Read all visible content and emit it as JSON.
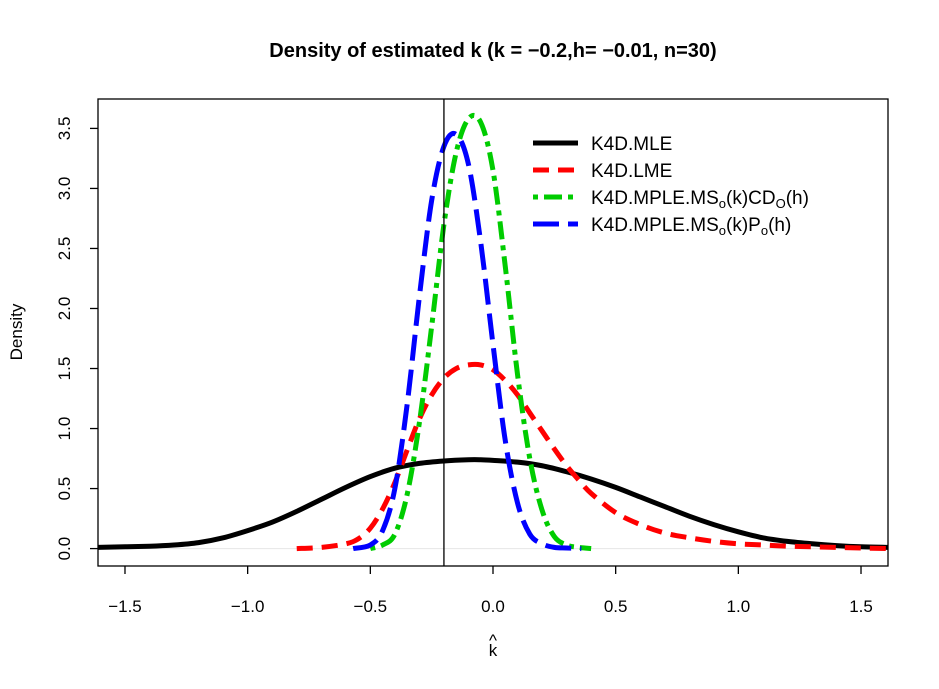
{
  "chart_data": {
    "type": "line",
    "title": "Density of estimated k (k = −0.2,h= −0.01, n=30)",
    "xlabel": "k",
    "xlabel_hat": "^",
    "ylabel": "Density",
    "xlim": [
      -1.61,
      1.61
    ],
    "ylim": [
      -0.145,
      3.745
    ],
    "x_ticks": [
      -1.5,
      -1.0,
      -0.5,
      0.0,
      0.5,
      1.0,
      1.5
    ],
    "x_tick_labels": [
      "−1.5",
      "−1.0",
      "−0.5",
      "0.0",
      "0.5",
      "1.0",
      "1.5"
    ],
    "y_ticks": [
      0.0,
      0.5,
      1.0,
      1.5,
      2.0,
      2.5,
      3.0,
      3.5
    ],
    "y_tick_labels": [
      "0.0",
      "0.5",
      "1.0",
      "1.5",
      "2.0",
      "2.5",
      "3.0",
      "3.5"
    ],
    "vline_x": -0.2,
    "legend_position": "top-right",
    "series": [
      {
        "name": "K4D.MLE",
        "legend_base": "K4D.MLE",
        "color": "#000000",
        "dash": "solid",
        "x": [
          -1.61,
          -1.4,
          -1.3,
          -1.2,
          -1.1,
          -1.0,
          -0.9,
          -0.8,
          -0.7,
          -0.6,
          -0.5,
          -0.4,
          -0.3,
          -0.2,
          -0.1,
          -0.05,
          0.0,
          0.1,
          0.2,
          0.3,
          0.4,
          0.5,
          0.6,
          0.7,
          0.8,
          0.9,
          1.0,
          1.1,
          1.2,
          1.3,
          1.4,
          1.5,
          1.61
        ],
        "y": [
          0.01,
          0.02,
          0.03,
          0.05,
          0.09,
          0.15,
          0.22,
          0.31,
          0.41,
          0.51,
          0.6,
          0.67,
          0.71,
          0.73,
          0.74,
          0.74,
          0.735,
          0.72,
          0.69,
          0.64,
          0.58,
          0.51,
          0.43,
          0.35,
          0.27,
          0.2,
          0.14,
          0.09,
          0.06,
          0.04,
          0.025,
          0.015,
          0.01
        ]
      },
      {
        "name": "K4D.LME",
        "legend_base": "K4D.LME",
        "color": "#ff0000",
        "dash": "dashed",
        "x": [
          -0.8,
          -0.7,
          -0.6,
          -0.55,
          -0.5,
          -0.45,
          -0.4,
          -0.35,
          -0.3,
          -0.25,
          -0.2,
          -0.15,
          -0.1,
          -0.05,
          0.0,
          0.05,
          0.1,
          0.15,
          0.2,
          0.25,
          0.3,
          0.35,
          0.4,
          0.5,
          0.6,
          0.7,
          0.8,
          0.9,
          1.0,
          1.1,
          1.2,
          1.3,
          1.4,
          1.5,
          1.61
        ],
        "y": [
          0.0,
          0.01,
          0.04,
          0.08,
          0.17,
          0.33,
          0.55,
          0.82,
          1.08,
          1.28,
          1.42,
          1.5,
          1.53,
          1.53,
          1.49,
          1.4,
          1.28,
          1.13,
          0.98,
          0.83,
          0.69,
          0.57,
          0.46,
          0.3,
          0.2,
          0.13,
          0.09,
          0.06,
          0.04,
          0.03,
          0.02,
          0.015,
          0.01,
          0.005,
          0.0
        ]
      },
      {
        "name": "K4D.MPLE.MSo(k)CDO(h)",
        "legend_base": "K4D.MPLE.MS",
        "legend_parts": [
          "K4D.MPLE.MS",
          "o",
          "(k)CD",
          "O",
          "(h)"
        ],
        "color": "#00cc00",
        "dash": "dotdash",
        "x": [
          -0.5,
          -0.45,
          -0.4,
          -0.35,
          -0.3,
          -0.25,
          -0.2,
          -0.15,
          -0.1,
          -0.05,
          0.0,
          0.05,
          0.1,
          0.15,
          0.2,
          0.25,
          0.3,
          0.35,
          0.4
        ],
        "y": [
          0.0,
          0.03,
          0.12,
          0.45,
          1.05,
          1.85,
          2.7,
          3.3,
          3.58,
          3.55,
          3.15,
          2.35,
          1.45,
          0.75,
          0.32,
          0.1,
          0.03,
          0.01,
          0.0
        ]
      },
      {
        "name": "K4D.MPLE.MSo(k)Po(h)",
        "legend_base": "K4D.MPLE.MS",
        "legend_parts": [
          "K4D.MPLE.MS",
          "o",
          "(k)P",
          "o",
          "(h)"
        ],
        "color": "#0000ff",
        "dash": "longdash",
        "x": [
          -0.57,
          -0.5,
          -0.45,
          -0.4,
          -0.35,
          -0.3,
          -0.25,
          -0.2,
          -0.15,
          -0.1,
          -0.05,
          0.0,
          0.05,
          0.1,
          0.15,
          0.2,
          0.25,
          0.3,
          0.36
        ],
        "y": [
          0.0,
          0.03,
          0.15,
          0.5,
          1.2,
          2.1,
          2.9,
          3.35,
          3.45,
          3.2,
          2.55,
          1.7,
          0.9,
          0.38,
          0.12,
          0.04,
          0.01,
          0.005,
          0.0
        ]
      }
    ]
  }
}
